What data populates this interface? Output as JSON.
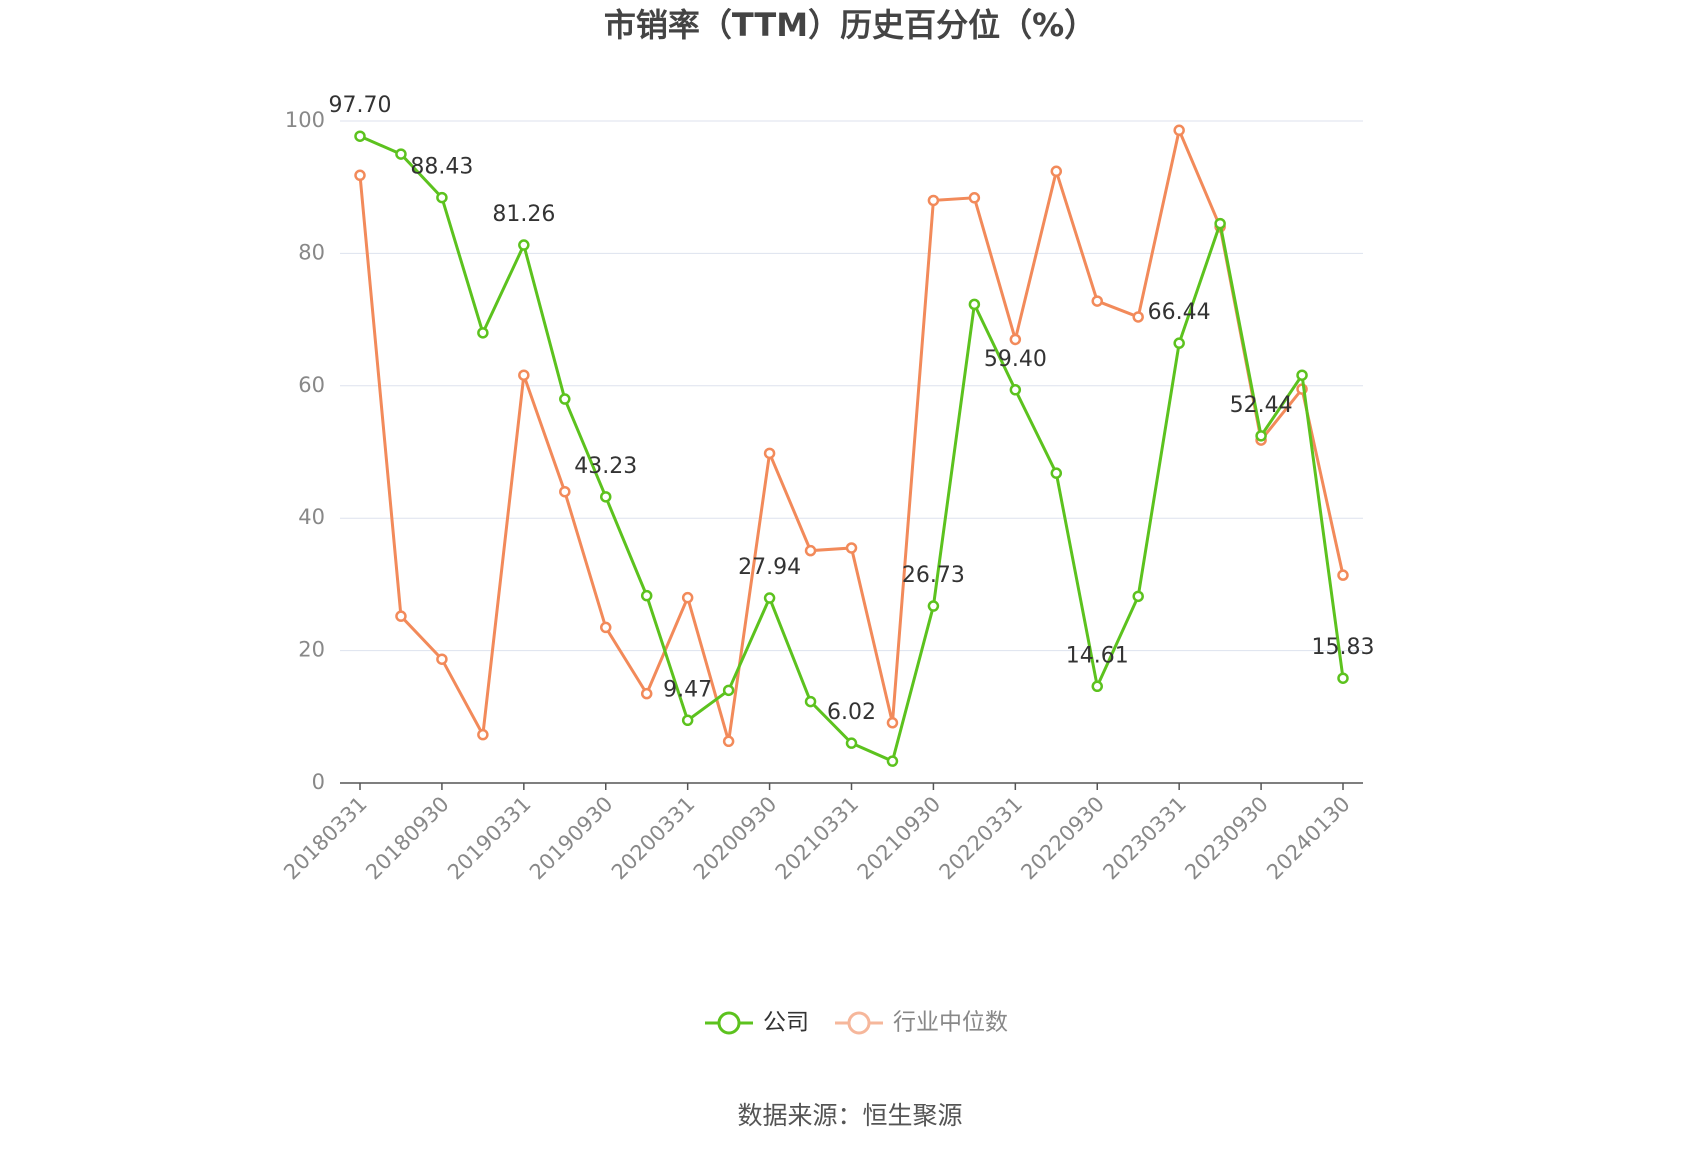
{
  "chart_data": {
    "type": "line",
    "title": "市销率（TTM）历史百分位（%）",
    "source": "数据来源：恒生聚源",
    "categories": [
      "20180331",
      null,
      "20180930",
      null,
      "20190331",
      null,
      "20190930",
      null,
      "20200331",
      null,
      "20200930",
      null,
      "20210331",
      null,
      "20210930",
      null,
      "20220331",
      null,
      "20220930",
      null,
      "20230331",
      null,
      "20230930",
      null,
      "20240130"
    ],
    "series": [
      {
        "name": "公司",
        "color": "#5cc21e",
        "values": [
          97.7,
          95.0,
          88.43,
          68.0,
          81.26,
          58.0,
          43.23,
          28.3,
          9.47,
          14.0,
          27.94,
          12.3,
          6.02,
          3.3,
          26.73,
          72.3,
          59.4,
          46.8,
          14.61,
          28.2,
          66.44,
          84.5,
          52.44,
          61.6,
          15.83
        ],
        "value_labels": [
          "97.70",
          null,
          "88.43",
          null,
          "81.26",
          null,
          "43.23",
          null,
          "9.47",
          null,
          "27.94",
          null,
          "6.02",
          null,
          "26.73",
          null,
          "59.40",
          null,
          "14.61",
          null,
          "66.44",
          null,
          "52.44",
          null,
          "15.83"
        ]
      },
      {
        "name": "行业中位数",
        "color": "#f28a5a",
        "values": [
          91.8,
          25.2,
          18.7,
          7.3,
          61.6,
          44.0,
          23.5,
          13.5,
          28.0,
          6.3,
          49.8,
          35.1,
          35.5,
          9.1,
          88.0,
          88.4,
          67.0,
          92.4,
          72.8,
          70.4,
          98.6,
          84.0,
          51.8,
          59.5,
          31.4
        ]
      }
    ],
    "ylim": [
      0,
      100
    ],
    "yticks": [
      0,
      20,
      40,
      60,
      80,
      100
    ],
    "grid": true
  }
}
